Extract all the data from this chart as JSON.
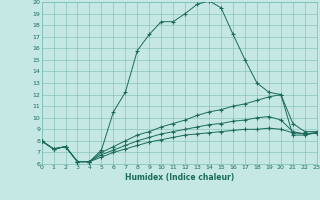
{
  "xlabel": "Humidex (Indice chaleur)",
  "xlim": [
    0,
    23
  ],
  "ylim": [
    6,
    20
  ],
  "yticks": [
    6,
    7,
    8,
    9,
    10,
    11,
    12,
    13,
    14,
    15,
    16,
    17,
    18,
    19,
    20
  ],
  "xticks": [
    0,
    1,
    2,
    3,
    4,
    5,
    6,
    7,
    8,
    9,
    10,
    11,
    12,
    13,
    14,
    15,
    16,
    17,
    18,
    19,
    20,
    21,
    22,
    23
  ],
  "bg_color": "#c5e8e4",
  "grid_color": "#7abdb5",
  "line_color": "#1a6b5a",
  "spine_color": "#7abdb5",
  "curve1_x": [
    0,
    1,
    2,
    3,
    4,
    5,
    6,
    7,
    8,
    9,
    10,
    11,
    12,
    13,
    14,
    15,
    16,
    17,
    18,
    19,
    20,
    21,
    22,
    23
  ],
  "curve1_y": [
    8.0,
    7.3,
    7.5,
    6.2,
    6.2,
    7.2,
    10.5,
    12.2,
    15.8,
    17.2,
    18.3,
    18.3,
    19.0,
    19.8,
    20.1,
    19.5,
    17.2,
    15.0,
    13.0,
    12.2,
    12.0,
    8.5,
    8.5,
    8.7
  ],
  "curve2_x": [
    0,
    1,
    2,
    3,
    4,
    5,
    6,
    7,
    8,
    9,
    10,
    11,
    12,
    13,
    14,
    15,
    16,
    17,
    18,
    19,
    20,
    21,
    22,
    23
  ],
  "curve2_y": [
    8.0,
    7.3,
    7.5,
    6.2,
    6.2,
    7.0,
    7.5,
    8.0,
    8.5,
    8.8,
    9.2,
    9.5,
    9.8,
    10.2,
    10.5,
    10.7,
    11.0,
    11.2,
    11.5,
    11.8,
    12.0,
    9.5,
    8.8,
    8.8
  ],
  "curve3_x": [
    0,
    1,
    2,
    3,
    4,
    5,
    6,
    7,
    8,
    9,
    10,
    11,
    12,
    13,
    14,
    15,
    16,
    17,
    18,
    19,
    20,
    21,
    22,
    23
  ],
  "curve3_y": [
    8.0,
    7.3,
    7.5,
    6.2,
    6.2,
    6.8,
    7.2,
    7.6,
    8.0,
    8.3,
    8.6,
    8.8,
    9.0,
    9.2,
    9.4,
    9.5,
    9.7,
    9.8,
    10.0,
    10.1,
    9.8,
    8.8,
    8.6,
    8.7
  ],
  "curve4_x": [
    0,
    1,
    2,
    3,
    4,
    5,
    6,
    7,
    8,
    9,
    10,
    11,
    12,
    13,
    14,
    15,
    16,
    17,
    18,
    19,
    20,
    21,
    22,
    23
  ],
  "curve4_y": [
    8.0,
    7.3,
    7.5,
    6.2,
    6.2,
    6.6,
    7.0,
    7.3,
    7.6,
    7.9,
    8.1,
    8.3,
    8.5,
    8.6,
    8.7,
    8.8,
    8.9,
    9.0,
    9.0,
    9.1,
    9.0,
    8.7,
    8.6,
    8.7
  ]
}
